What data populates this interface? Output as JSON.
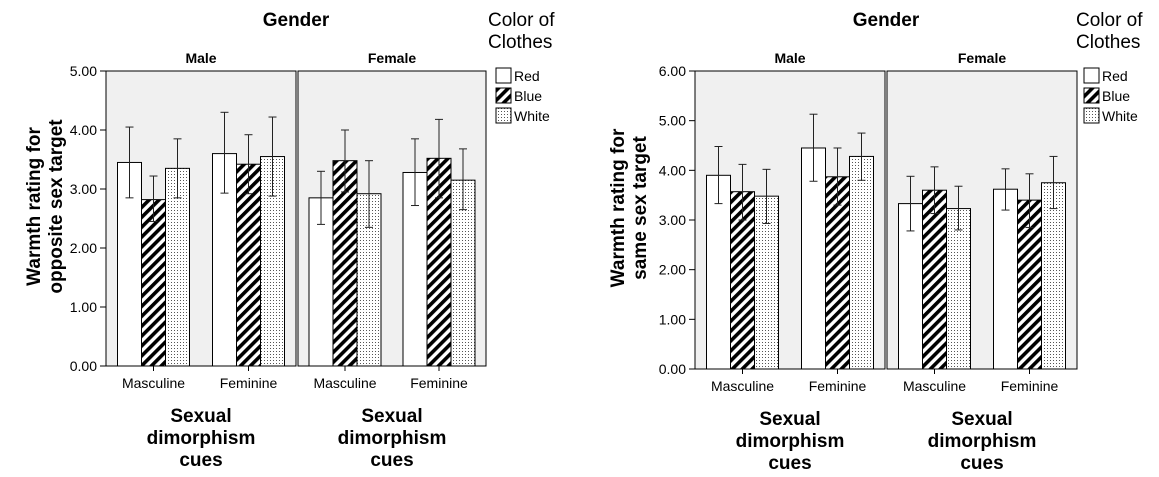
{
  "chart_data": [
    {
      "type": "bar",
      "panel_title": "Gender",
      "ylabel": "Warmth rating for opposite sex target",
      "xlabel": "Sexual dimorphism cues",
      "ylim": [
        0,
        5
      ],
      "yticks": [
        "0.00",
        "1.00",
        "2.00",
        "3.00",
        "4.00",
        "5.00"
      ],
      "legend_title": "Color of Clothes",
      "legend": [
        "Red",
        "Blue",
        "White"
      ],
      "panels": [
        {
          "name": "Male",
          "categories": [
            "Masculine",
            "Feminine"
          ],
          "series": [
            {
              "name": "Red",
              "values": [
                3.45,
                3.6
              ],
              "err_low": [
                2.85,
                2.93
              ],
              "err_high": [
                4.05,
                4.3
              ]
            },
            {
              "name": "Blue",
              "values": [
                2.82,
                3.42
              ],
              "err_low": [
                2.45,
                2.92
              ],
              "err_high": [
                3.22,
                3.92
              ]
            },
            {
              "name": "White",
              "values": [
                3.35,
                3.55
              ],
              "err_low": [
                2.85,
                2.88
              ],
              "err_high": [
                3.85,
                4.22
              ]
            }
          ]
        },
        {
          "name": "Female",
          "categories": [
            "Masculine",
            "Feminine"
          ],
          "series": [
            {
              "name": "Red",
              "values": [
                2.85,
                3.28
              ],
              "err_low": [
                2.4,
                2.72
              ],
              "err_high": [
                3.3,
                3.85
              ]
            },
            {
              "name": "Blue",
              "values": [
                3.48,
                3.52
              ],
              "err_low": [
                2.95,
                2.85
              ],
              "err_high": [
                4.0,
                4.18
              ]
            },
            {
              "name": "White",
              "values": [
                2.92,
                3.15
              ],
              "err_low": [
                2.35,
                2.65
              ],
              "err_high": [
                3.48,
                3.68
              ]
            }
          ]
        }
      ]
    },
    {
      "type": "bar",
      "panel_title": "Gender",
      "ylabel": "Warmth rating for same sex target",
      "xlabel": "Sexual dimorphism cues",
      "ylim": [
        0,
        6
      ],
      "yticks": [
        "0.00",
        "1.00",
        "2.00",
        "3.00",
        "4.00",
        "5.00",
        "6.00"
      ],
      "legend_title": "Color of Clothes",
      "legend": [
        "Red",
        "Blue",
        "White"
      ],
      "panels": [
        {
          "name": "Male",
          "categories": [
            "Masculine",
            "Feminine"
          ],
          "series": [
            {
              "name": "Red",
              "values": [
                3.9,
                4.45
              ],
              "err_low": [
                3.33,
                3.78
              ],
              "err_high": [
                4.48,
                5.13
              ]
            },
            {
              "name": "Blue",
              "values": [
                3.57,
                3.87
              ],
              "err_low": [
                3.0,
                3.3
              ],
              "err_high": [
                4.12,
                4.45
              ]
            },
            {
              "name": "White",
              "values": [
                3.48,
                4.28
              ],
              "err_low": [
                2.93,
                3.8
              ],
              "err_high": [
                4.02,
                4.75
              ]
            }
          ]
        },
        {
          "name": "Female",
          "categories": [
            "Masculine",
            "Feminine"
          ],
          "series": [
            {
              "name": "Red",
              "values": [
                3.33,
                3.62
              ],
              "err_low": [
                2.78,
                3.2
              ],
              "err_high": [
                3.88,
                4.03
              ]
            },
            {
              "name": "Blue",
              "values": [
                3.6,
                3.4
              ],
              "err_low": [
                3.13,
                2.85
              ],
              "err_high": [
                4.07,
                3.93
              ]
            },
            {
              "name": "White",
              "values": [
                3.23,
                3.75
              ],
              "err_low": [
                2.8,
                3.23
              ],
              "err_high": [
                3.68,
                4.28
              ]
            }
          ]
        }
      ]
    }
  ]
}
